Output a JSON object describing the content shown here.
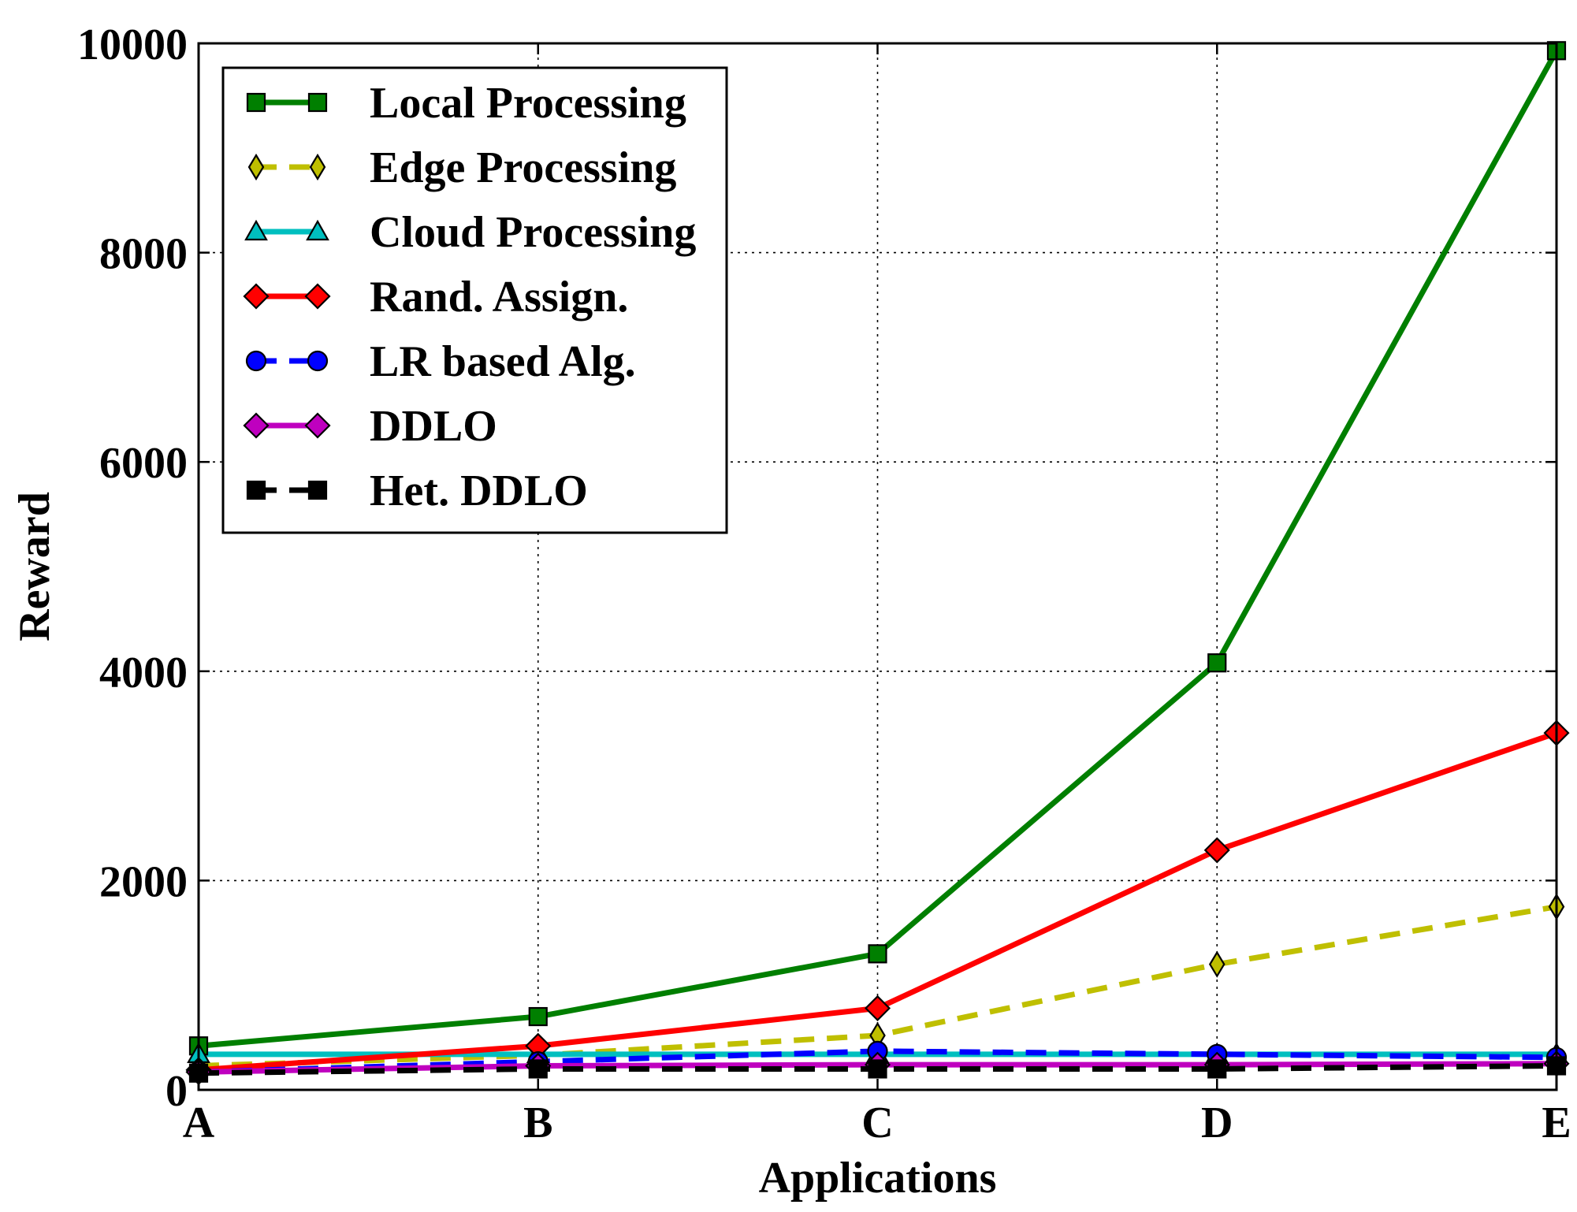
{
  "chart_data": {
    "type": "line",
    "title": "",
    "xlabel": "Applications",
    "ylabel": "Reward",
    "categories": [
      "A",
      "B",
      "C",
      "D",
      "E"
    ],
    "ylim": [
      0,
      10000
    ],
    "yticks": [
      0,
      2000,
      4000,
      6000,
      8000,
      10000
    ],
    "ytick_labels": [
      "0",
      "2000",
      "4000",
      "6000",
      "8000",
      "10000"
    ],
    "grid": true,
    "legend_position": "top-left",
    "series": [
      {
        "name": "Local Processing",
        "values": [
          420,
          700,
          1300,
          4080,
          9930
        ],
        "color": "#007f00",
        "marker": "square",
        "dash": "solid"
      },
      {
        "name": "Edge Processing",
        "values": [
          230,
          330,
          520,
          1200,
          1750
        ],
        "color": "#bfbf00",
        "marker": "thin-diamond",
        "dash": "dashed"
      },
      {
        "name": "Cloud Processing",
        "values": [
          340,
          340,
          340,
          340,
          340
        ],
        "color": "#00bfbf",
        "marker": "triangle",
        "dash": "solid"
      },
      {
        "name": "Rand. Assign.",
        "values": [
          190,
          420,
          780,
          2290,
          3410
        ],
        "color": "#ff0000",
        "marker": "diamond",
        "dash": "solid"
      },
      {
        "name": "LR based Alg.",
        "values": [
          170,
          270,
          370,
          340,
          310
        ],
        "color": "#0000ff",
        "marker": "circle",
        "dash": "dashed"
      },
      {
        "name": "DDLO",
        "values": [
          170,
          230,
          240,
          240,
          250
        ],
        "color": "#bf00bf",
        "marker": "diamond",
        "dash": "solid"
      },
      {
        "name": "Het. DDLO",
        "values": [
          160,
          200,
          200,
          200,
          230
        ],
        "color": "#000000",
        "marker": "square",
        "dash": "dashed"
      }
    ]
  }
}
